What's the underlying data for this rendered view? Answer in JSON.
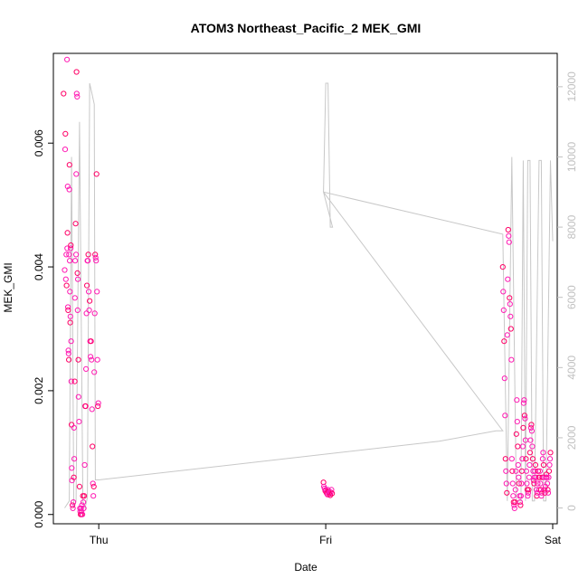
{
  "chart_data": {
    "type": "scatter",
    "title": "ATOM3 Northeast_Pacific_2 MEK_GMI",
    "xlabel": "Date",
    "ylabel": "MEK_GMI",
    "x_ticks": [
      "Thu",
      "Fri",
      "Sat"
    ],
    "xlim": [
      -0.2,
      2.02
    ],
    "ylim": [
      -0.00015,
      0.00745
    ],
    "y_ticks": [
      0.0,
      0.002,
      0.004,
      0.006
    ],
    "y_tick_labels": [
      "0.000",
      "0.002",
      "0.004",
      "0.006"
    ],
    "y2lim": [
      -450,
      12950
    ],
    "y2_ticks": [
      0,
      2000,
      4000,
      6000,
      8000,
      10000,
      12000
    ],
    "y2_tick_labels": [
      "0",
      "2000",
      "4000",
      "6000",
      "8000",
      "10000",
      "12000"
    ],
    "grid": false,
    "colors": {
      "points": "#ff1ab3",
      "points_dense": "#ff0066",
      "line": "#c8c8c8",
      "right_axis": "#c0c0c0"
    },
    "series": [
      {
        "kind": "points",
        "x": [
          -0.155,
          -0.15,
          -0.148,
          -0.147,
          -0.145,
          -0.143,
          -0.142,
          -0.14,
          -0.139,
          -0.138,
          -0.137,
          -0.136,
          -0.135,
          -0.134,
          -0.133,
          -0.132,
          -0.131,
          -0.13,
          -0.129,
          -0.128,
          -0.127,
          -0.126,
          -0.125,
          -0.124,
          -0.123,
          -0.122,
          -0.121,
          -0.12,
          -0.119,
          -0.118,
          -0.116,
          -0.114,
          -0.112,
          -0.11,
          -0.109,
          -0.108,
          -0.106,
          -0.105,
          -0.104,
          -0.102,
          -0.1,
          -0.099,
          -0.098,
          -0.097,
          -0.095,
          -0.094,
          -0.093,
          -0.092,
          -0.09,
          -0.089,
          -0.087,
          -0.085,
          -0.083,
          -0.082,
          -0.08,
          -0.078,
          -0.076,
          -0.075,
          -0.074,
          -0.072,
          -0.07,
          -0.068,
          -0.066,
          -0.064,
          -0.062,
          -0.06,
          -0.058,
          -0.056,
          -0.054,
          -0.052,
          -0.05,
          -0.048,
          -0.046,
          -0.044,
          -0.042,
          -0.04,
          -0.038,
          -0.036,
          -0.034,
          -0.032,
          -0.03,
          -0.028,
          -0.026,
          -0.024,
          -0.022,
          -0.02,
          -0.018,
          -0.016,
          -0.014,
          -0.012,
          -0.01,
          -0.008,
          -0.006,
          -0.004,
          -0.002
        ],
        "y": [
          0.0068,
          0.00395,
          0.0059,
          0.00615,
          0.0038,
          0.0042,
          0.0037,
          0.00735,
          0.0043,
          0.00455,
          0.0053,
          0.00335,
          0.0033,
          0.00265,
          0.0026,
          0.0025,
          0.0042,
          0.00525,
          0.00565,
          0.0041,
          0.0036,
          0.0031,
          0.0032,
          0.0043,
          0.00435,
          0.0028,
          0.00215,
          0.00145,
          0.00075,
          0.00055,
          0.00015,
          0.0001,
          0.0002,
          0.0006,
          0.0014,
          0.0009,
          0.00215,
          0.0035,
          0.0041,
          0.0047,
          0.0042,
          0.0055,
          0.00715,
          0.0068,
          0.00675,
          0.0039,
          0.0033,
          0.0038,
          0.0025,
          0.0019,
          0.0015,
          0.00045,
          0.0001,
          5e-05,
          0.0,
          0.0001,
          5e-05,
          0.0,
          0.00015,
          0.0,
          0.0003,
          0.0002,
          0.0001,
          0.0003,
          0.0008,
          0.00175,
          0.00175,
          0.00235,
          0.00325,
          0.0037,
          0.0041,
          0.0041,
          0.0042,
          0.0036,
          0.0033,
          0.00345,
          0.0028,
          0.00255,
          0.0028,
          0.0025,
          0.0017,
          0.0011,
          0.0005,
          0.0003,
          0.00045,
          0.0023,
          0.00325,
          0.0042,
          0.00415,
          0.0041,
          0.0055,
          0.0036,
          0.0025,
          0.00175,
          0.0018
        ]
      },
      {
        "kind": "points",
        "x": [
          0.99,
          0.992,
          0.995,
          0.998,
          1.0,
          1.002,
          1.005,
          1.008,
          1.01,
          1.012,
          1.015,
          1.018,
          1.02,
          1.022,
          1.025,
          1.028
        ],
        "y": [
          0.00052,
          0.00045,
          0.00042,
          0.00038,
          0.0004,
          0.00036,
          0.00034,
          0.00032,
          0.0004,
          0.00037,
          0.00035,
          0.00033,
          0.00031,
          0.00036,
          0.0004,
          0.00034
        ]
      },
      {
        "kind": "points",
        "x": [
          1.78,
          1.782,
          1.784,
          1.786,
          1.788,
          1.79,
          1.792,
          1.794,
          1.796,
          1.798,
          1.8,
          1.802,
          1.804,
          1.806,
          1.808,
          1.81,
          1.812,
          1.814,
          1.816,
          1.818,
          1.82,
          1.822,
          1.824,
          1.826,
          1.828,
          1.83,
          1.832,
          1.834,
          1.836,
          1.838,
          1.84,
          1.842,
          1.844,
          1.846,
          1.848,
          1.85,
          1.852,
          1.854,
          1.856,
          1.858,
          1.86,
          1.862,
          1.864,
          1.866,
          1.868,
          1.87,
          1.872,
          1.874,
          1.876,
          1.878,
          1.88,
          1.882,
          1.884,
          1.886,
          1.888,
          1.89,
          1.892,
          1.894,
          1.896,
          1.898,
          1.9,
          1.902,
          1.904,
          1.906,
          1.908,
          1.91,
          1.912,
          1.914,
          1.916,
          1.918,
          1.92,
          1.922,
          1.924,
          1.926,
          1.928,
          1.93,
          1.932,
          1.934,
          1.936,
          1.938,
          1.94,
          1.942,
          1.944,
          1.946,
          1.948,
          1.95,
          1.952,
          1.954,
          1.956,
          1.958,
          1.96,
          1.962,
          1.964,
          1.966,
          1.968,
          1.97,
          1.972,
          1.974,
          1.976,
          1.978,
          1.98,
          1.982,
          1.984,
          1.986,
          1.988,
          1.99
        ],
        "y": [
          0.004,
          0.0036,
          0.0033,
          0.0028,
          0.0022,
          0.0016,
          0.0009,
          0.0007,
          0.0005,
          0.00035,
          0.0029,
          0.0038,
          0.0046,
          0.0045,
          0.0044,
          0.0035,
          0.0034,
          0.0032,
          0.003,
          0.0025,
          0.0009,
          0.0007,
          0.0005,
          0.0003,
          0.0002,
          0.00015,
          0.0001,
          0.0002,
          0.0004,
          0.0007,
          0.0013,
          0.00185,
          0.0015,
          0.0011,
          0.0008,
          0.0006,
          0.0005,
          0.0003,
          0.0002,
          0.00015,
          0.0003,
          0.0005,
          0.0007,
          0.0009,
          0.0011,
          0.0014,
          0.0018,
          0.00185,
          0.0016,
          0.00155,
          0.0012,
          0.0009,
          0.0007,
          0.0005,
          0.0004,
          0.0003,
          0.00035,
          0.0004,
          0.0006,
          0.0008,
          0.001,
          0.0012,
          0.0014,
          0.00145,
          0.00135,
          0.0011,
          0.0009,
          0.0007,
          0.00055,
          0.0005,
          0.0006,
          0.0007,
          0.0008,
          0.0006,
          0.0004,
          0.0003,
          0.00035,
          0.0005,
          0.0007,
          0.0006,
          0.0004,
          0.0006,
          0.0007,
          0.0005,
          0.0004,
          0.0003,
          0.00035,
          0.0006,
          0.0009,
          0.001,
          0.0008,
          0.0006,
          0.0004,
          0.00035,
          0.00045,
          0.0006,
          0.00065,
          0.0006,
          0.0005,
          0.0004,
          0.00035,
          0.0006,
          0.0007,
          0.0008,
          0.0009,
          0.001
        ]
      },
      {
        "kind": "line",
        "axis": "right",
        "x": [
          -0.15,
          -0.13,
          -0.12,
          -0.11,
          -0.1,
          -0.085,
          -0.07,
          -0.06,
          -0.05,
          -0.04,
          -0.03,
          -0.02,
          -0.015,
          0.0,
          1.5,
          1.75,
          1.78,
          0.99,
          1.0,
          1.01,
          1.02,
          1.03,
          0.99,
          1.78,
          1.8,
          1.82,
          1.84,
          1.86,
          1.87,
          1.88,
          1.89,
          1.9,
          1.91,
          1.92,
          1.94,
          1.95,
          1.96,
          1.97,
          1.99,
          2.0
        ],
        "y": [
          0,
          200,
          10000,
          0,
          200,
          11000,
          200,
          0,
          300,
          12100,
          11800,
          11500,
          800,
          800,
          1900,
          2200,
          2200,
          9000,
          12100,
          12100,
          8000,
          8000,
          9000,
          7800,
          200,
          10000,
          200,
          200,
          9900,
          200,
          9900,
          9900,
          200,
          200,
          9900,
          9900,
          200,
          200,
          9900,
          7600
        ]
      }
    ]
  }
}
